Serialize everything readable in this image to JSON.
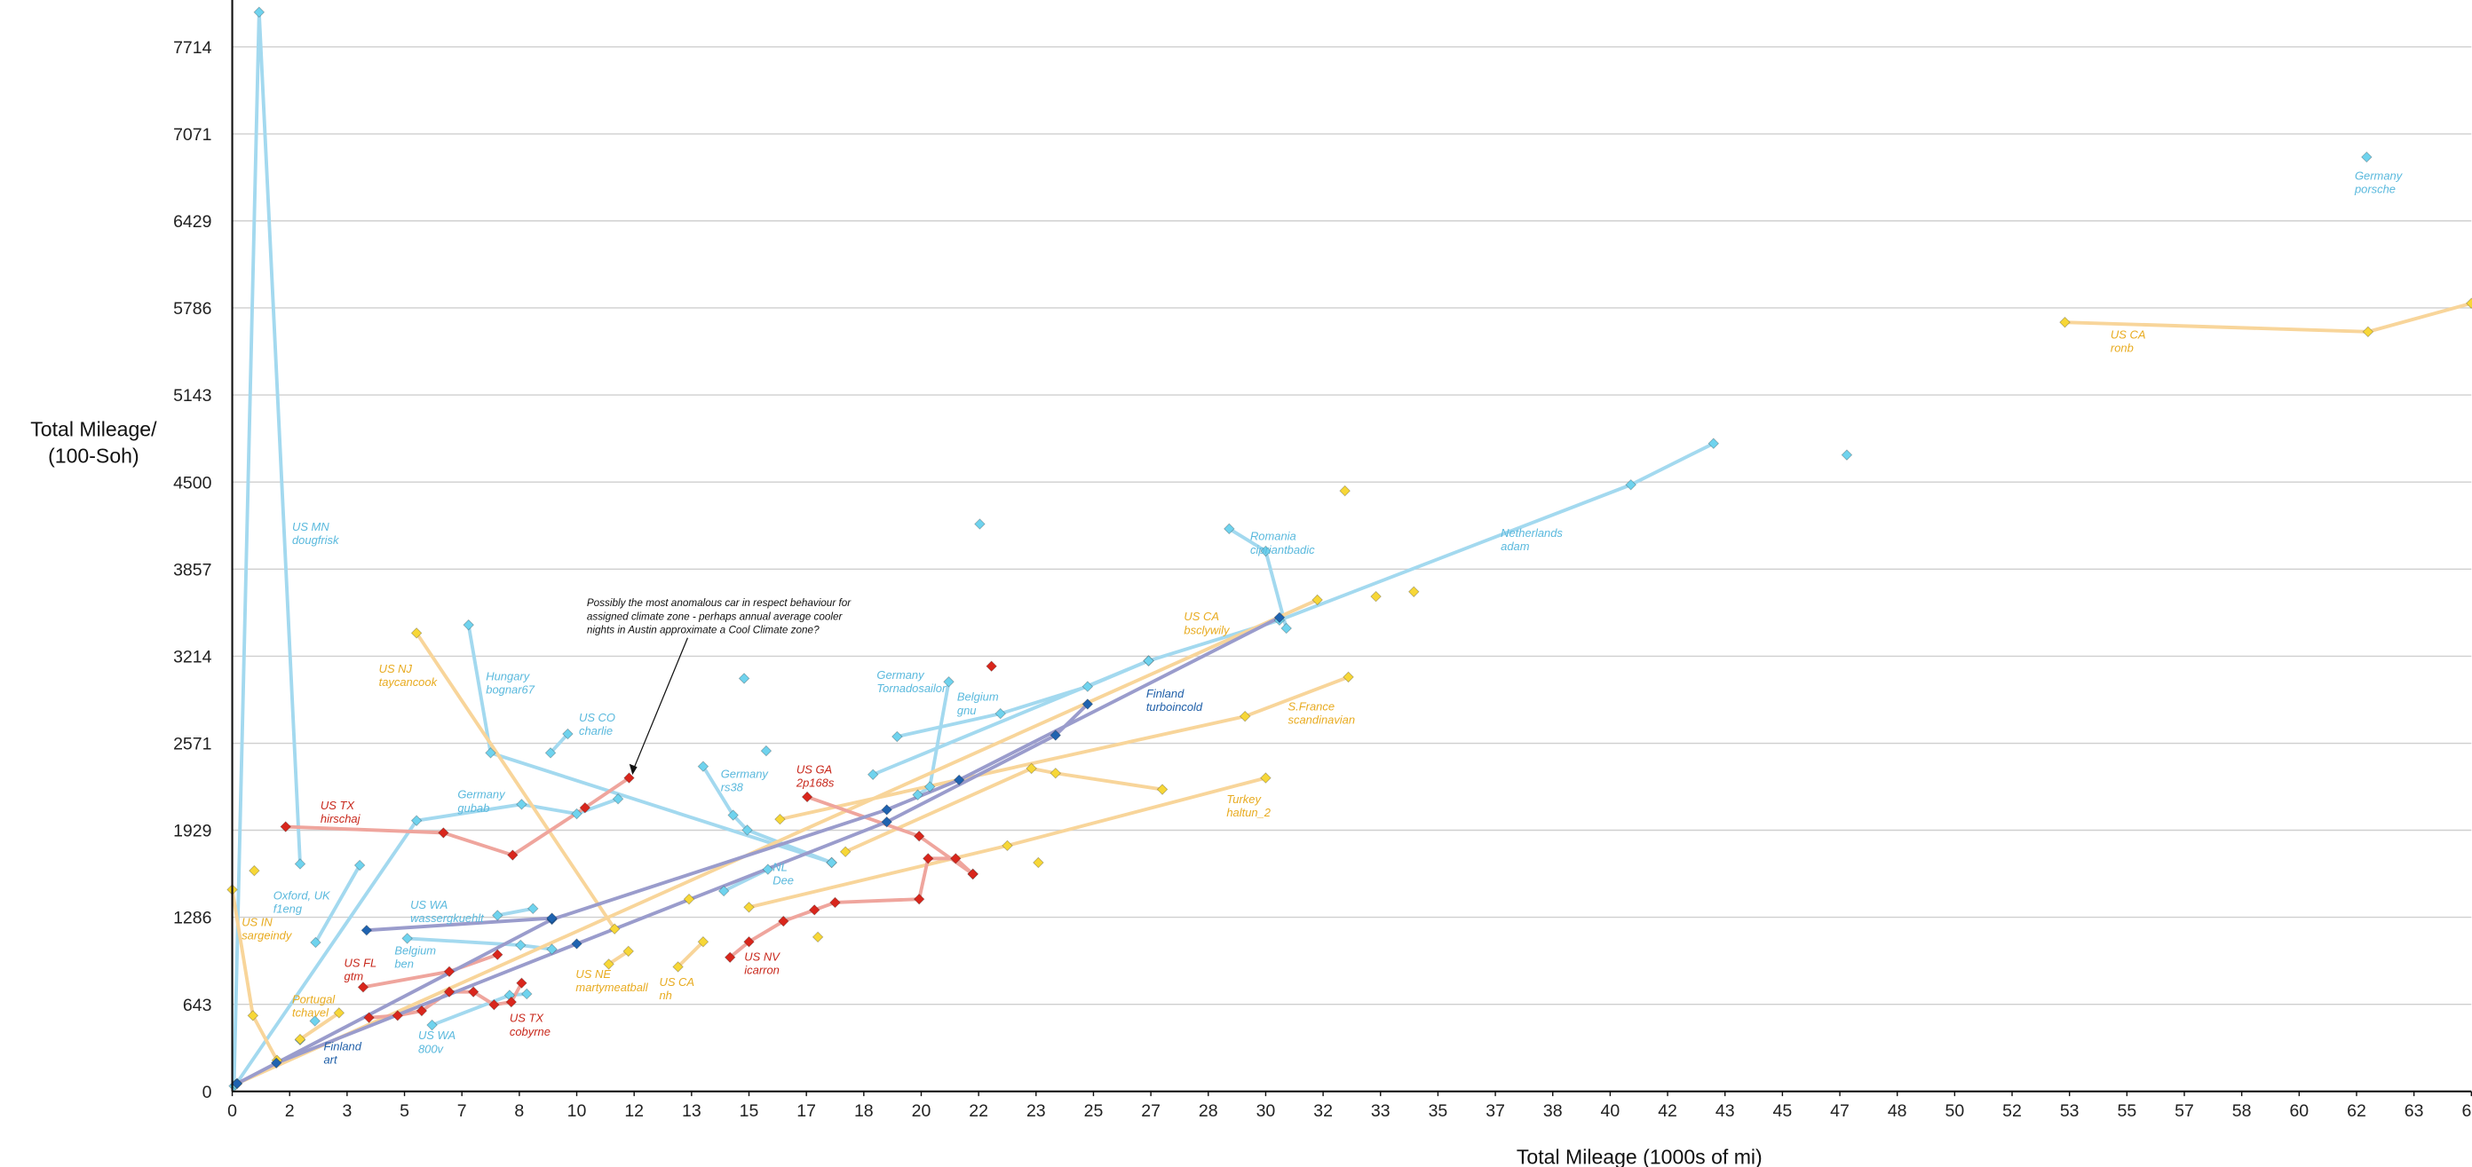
{
  "chart_data": {
    "type": "line",
    "ylabel": [
      "Total Mileage/",
      "(100-Soh)"
    ],
    "xlabel": "Total Mileage (1000s of mi)",
    "annotation": [
      "Possibly the most anomalous car in respect behaviour for",
      "assigned climate zone - perhaps annual average cooler",
      "nights in Austin approximate a Cool Climate zone?"
    ],
    "xlim": [
      0,
      65
    ],
    "ylim": [
      0,
      8060
    ],
    "grid": true,
    "xticks": [
      0,
      {
        "value": 1.6667,
        "label": "2"
      },
      {
        "value": 3.3333,
        "label": "3"
      },
      5,
      {
        "value": 6.6667,
        "label": "7"
      },
      {
        "value": 8.3333,
        "label": "8"
      },
      10,
      {
        "value": 11.6667,
        "label": "12"
      },
      {
        "value": 13.3333,
        "label": "13"
      },
      15,
      {
        "value": 16.6667,
        "label": "17"
      },
      {
        "value": 18.3333,
        "label": "18"
      },
      20,
      {
        "value": 21.6667,
        "label": "22"
      },
      {
        "value": 23.3333,
        "label": "23"
      },
      25,
      {
        "value": 26.6667,
        "label": "27"
      },
      {
        "value": 28.3333,
        "label": "28"
      },
      30,
      {
        "value": 31.6667,
        "label": "32"
      },
      {
        "value": 33.3333,
        "label": "33"
      },
      35,
      {
        "value": 36.6667,
        "label": "37"
      },
      {
        "value": 38.3333,
        "label": "38"
      },
      40,
      {
        "value": 41.6667,
        "label": "42"
      },
      {
        "value": 43.3333,
        "label": "43"
      },
      45,
      {
        "value": 46.6667,
        "label": "47"
      },
      {
        "value": 48.3333,
        "label": "48"
      },
      50,
      {
        "value": 51.6667,
        "label": "52"
      },
      {
        "value": 53.3333,
        "label": "53"
      },
      55,
      {
        "value": 56.6667,
        "label": "57"
      },
      {
        "value": 58.3333,
        "label": "58"
      },
      60,
      {
        "value": 61.6667,
        "label": "62"
      },
      {
        "value": 63.3333,
        "label": "63"
      },
      65
    ],
    "yticks": [
      0,
      643,
      1286,
      1929,
      2571,
      3214,
      3857,
      4500,
      5143,
      5786,
      6429,
      7071,
      7714
    ],
    "series": [
      {
        "region": "US MN",
        "user": "dougfrisk",
        "color": "#6fd3ee",
        "line_color": "#a3d9ef",
        "label_color": "#5ab9dd",
        "lines": true,
        "x": [
          0.05,
          0.78,
          1.97
        ],
        "values": [
          40,
          7970,
          1680
        ]
      },
      {
        "region": "Oxford, UK",
        "user": "f1eng",
        "color": "#6fd3ee",
        "line_color": "#a3d9ef",
        "label_color": "#5ab9dd",
        "lines": true,
        "x": [
          2.42,
          3.7
        ],
        "values": [
          1100,
          1670
        ]
      },
      {
        "region": "Germany",
        "user": "gubab",
        "color": "#6fd3ee",
        "line_color": "#a3d9ef",
        "label_color": "#5ab9dd",
        "lines": true,
        "x": [
          0.1,
          5.35,
          8.4,
          10.0,
          11.2
        ],
        "values": [
          50,
          2000,
          2120,
          2050,
          2160
        ]
      },
      {
        "region": "Hungary",
        "user": "bognar67",
        "color": "#6fd3ee",
        "line_color": "#a3d9ef",
        "label_color": "#5ab9dd",
        "lines": true,
        "x": [
          6.86,
          7.5,
          17.4
        ],
        "values": [
          3445,
          2500,
          1690
        ]
      },
      {
        "region": "US CO",
        "user": "charlie",
        "color": "#6fd3ee",
        "line_color": "#a3d9ef",
        "label_color": "#5ab9dd",
        "lines": true,
        "x": [
          9.24,
          9.74
        ],
        "values": [
          2500,
          2640
        ]
      },
      {
        "region": "Germany",
        "user": "rs38",
        "color": "#6fd3ee",
        "line_color": "#a3d9ef",
        "label_color": "#5ab9dd",
        "lines": true,
        "x": [
          13.67,
          14.54,
          14.95,
          17.4
        ],
        "values": [
          2400,
          2040,
          1930,
          1690
        ]
      },
      {
        "region": "NL",
        "user": "Dee",
        "color": "#6fd3ee",
        "line_color": "#a3d9ef",
        "label_color": "#5ab9dd",
        "lines": true,
        "x": [
          14.27,
          15.55
        ],
        "values": [
          1480,
          1640
        ]
      },
      {
        "region": "Germany",
        "user": "Tornadosailor",
        "color": "#6fd3ee",
        "line_color": "#a3d9ef",
        "label_color": "#5ab9dd",
        "lines": true,
        "x": [
          20.8,
          20.25,
          19.9
        ],
        "values": [
          3025,
          2250,
          2190
        ]
      },
      {
        "region": "Belgium",
        "user": "gnu",
        "color": "#6fd3ee",
        "line_color": "#a3d9ef",
        "label_color": "#5ab9dd",
        "lines": true,
        "x": [
          19.3,
          22.3,
          24.83,
          26.6
        ],
        "values": [
          2620,
          2790,
          2990,
          3180
        ]
      },
      {
        "region": "Romania",
        "user": "cipriantbadic",
        "color": "#6fd3ee",
        "line_color": "#a3d9ef",
        "label_color": "#5ab9dd",
        "lines": true,
        "x": [
          28.94,
          30.0,
          30.6
        ],
        "values": [
          4155,
          3990,
          3420
        ]
      },
      {
        "region": "Netherlands",
        "user": "adam",
        "color": "#6fd3ee",
        "line_color": "#a3d9ef",
        "label_color": "#5ab9dd",
        "lines": true,
        "x": [
          18.6,
          26.6,
          30.4,
          40.6,
          43.0
        ],
        "values": [
          2340,
          3180,
          3480,
          4480,
          4785
        ]
      },
      {
        "region": "Germany",
        "user": "porsche",
        "color": "#6fd3ee",
        "line_color": "#a3d9ef",
        "label_color": "#5ab9dd",
        "lines": true,
        "x": [
          61.96
        ],
        "values": [
          6900
        ]
      },
      {
        "region": "Belgium",
        "user": "ben",
        "color": "#6fd3ee",
        "line_color": "#a3d9ef",
        "label_color": "#5ab9dd",
        "lines": true,
        "x": [
          5.08,
          8.37,
          9.28
        ],
        "values": [
          1130,
          1080,
          1050
        ]
      },
      {
        "region": "US WA",
        "user": "wassergkuehlt",
        "color": "#6fd3ee",
        "line_color": "#a3d9ef",
        "label_color": "#5ab9dd",
        "lines": true,
        "x": [
          7.7,
          8.73
        ],
        "values": [
          1300,
          1350
        ]
      },
      {
        "region": "US WA",
        "user": "800v",
        "color": "#6fd3ee",
        "line_color": "#a3d9ef",
        "label_color": "#5ab9dd",
        "lines": true,
        "x": [
          5.8,
          8.05,
          8.55
        ],
        "values": [
          490,
          710,
          720
        ]
      },
      {
        "color": "#6fd3ee",
        "line_color": "#a3d9ef",
        "lines": false,
        "x": [
          46.87,
          21.7,
          14.86,
          15.5,
          1.97,
          2.4
        ],
        "values": [
          4700,
          4190,
          3050,
          2515,
          380,
          520
        ]
      },
      {
        "region": "US IN",
        "user": "sargeindy",
        "color": "#f7d737",
        "line_color": "#f8d59a",
        "label_color": "#e8ab20",
        "lines": true,
        "x": [
          0.0,
          0.6,
          1.3
        ],
        "values": [
          1490,
          560,
          230
        ]
      },
      {
        "region": "Portugal",
        "user": "tchavel",
        "color": "#f7d737",
        "line_color": "#f8d59a",
        "label_color": "#e8ab20",
        "lines": true,
        "x": [
          1.97,
          3.1
        ],
        "values": [
          385,
          580
        ]
      },
      {
        "region": "US NJ",
        "user": "taycancook",
        "color": "#f7d737",
        "line_color": "#f8d59a",
        "label_color": "#e8ab20",
        "lines": true,
        "x": [
          5.35,
          11.1
        ],
        "values": [
          3385,
          1200
        ]
      },
      {
        "region": "US NE",
        "user": "martymeatball",
        "color": "#f7d737",
        "line_color": "#f8d59a",
        "label_color": "#e8ab20",
        "lines": true,
        "x": [
          10.93,
          11.5
        ],
        "values": [
          940,
          1035
        ]
      },
      {
        "region": "US CA",
        "user": "nh",
        "color": "#f7d737",
        "line_color": "#f8d59a",
        "label_color": "#e8ab20",
        "lines": true,
        "x": [
          12.94,
          13.67
        ],
        "values": [
          920,
          1105
        ]
      },
      {
        "region": "US CA",
        "user": "bsclywily",
        "color": "#f7d737",
        "line_color": "#f8d59a",
        "label_color": "#e8ab20",
        "lines": true,
        "x": [
          0.14,
          31.5
        ],
        "values": [
          58,
          3630
        ]
      },
      {
        "region": "S.France",
        "user": "scandinavian",
        "color": "#f7d737",
        "line_color": "#f8d59a",
        "label_color": "#e8ab20",
        "lines": true,
        "x": [
          15.9,
          29.4,
          32.4
        ],
        "values": [
          2010,
          2770,
          3060
        ]
      },
      {
        "region": "Turkey",
        "user": "haltun_2",
        "color": "#f7d737",
        "line_color": "#f8d59a",
        "label_color": "#e8ab20",
        "lines": true,
        "x": [
          15.0,
          22.5,
          30.0
        ],
        "values": [
          1360,
          1815,
          2315
        ]
      },
      {
        "region": "US CA",
        "user": "ronb",
        "color": "#f7d737",
        "line_color": "#f8d59a",
        "label_color": "#e8ab20",
        "lines": true,
        "x": [
          53.2,
          62.0,
          65.0
        ],
        "values": [
          5680,
          5610,
          5820
        ]
      },
      {
        "color": "#f7d737",
        "line_color": "#f8d59a",
        "lines": true,
        "x": [
          17.8,
          23.2,
          23.9,
          27.0
        ],
        "values": [
          1770,
          2385,
          2350,
          2230
        ]
      },
      {
        "color": "#f7d737",
        "line_color": "#f8d59a",
        "lines": false,
        "x": [
          32.3,
          33.2,
          34.3,
          23.4,
          17.0,
          13.26,
          0.64
        ],
        "values": [
          4435,
          3655,
          3690,
          1690,
          1140,
          1420,
          1630
        ]
      },
      {
        "region": "US TX",
        "user": "hirschaj",
        "color": "#d9261c",
        "line_color": "#efa59d",
        "label_color": "#c8281c",
        "lines": true,
        "x": [
          1.55,
          6.13,
          8.14,
          10.24,
          11.52
        ],
        "values": [
          1955,
          1910,
          1745,
          2095,
          2315
        ]
      },
      {
        "region": "US GA",
        "user": "2p168s",
        "color": "#d9261c",
        "line_color": "#efa59d",
        "label_color": "#c8281c",
        "lines": true,
        "x": [
          16.69,
          19.94,
          21.5
        ],
        "values": [
          2175,
          1885,
          1605
        ]
      },
      {
        "region": "US NV",
        "user": "icarron",
        "color": "#d9261c",
        "line_color": "#efa59d",
        "label_color": "#c8281c",
        "lines": true,
        "x": [
          14.45,
          15.0,
          16.0,
          16.9,
          17.5,
          19.94,
          20.2,
          21.0,
          21.5
        ],
        "values": [
          990,
          1105,
          1257,
          1340,
          1395,
          1420,
          1720,
          1720,
          1605
        ]
      },
      {
        "region": "US FL",
        "user": "gtm",
        "color": "#d9261c",
        "line_color": "#efa59d",
        "label_color": "#c8281c",
        "lines": true,
        "x": [
          3.8,
          6.3,
          7.7
        ],
        "values": [
          770,
          885,
          1010
        ]
      },
      {
        "region": "US TX",
        "user": "cobyrne",
        "color": "#d9261c",
        "line_color": "#efa59d",
        "label_color": "#c8281c",
        "lines": true,
        "x": [
          3.97,
          4.8,
          5.5,
          6.3,
          7.0,
          7.6,
          8.1,
          8.4
        ],
        "values": [
          545,
          560,
          595,
          735,
          735,
          640,
          660,
          800
        ]
      },
      {
        "color": "#d9261c",
        "line_color": "#efa59d",
        "lines": false,
        "x": [
          22.04
        ],
        "values": [
          3140
        ]
      },
      {
        "region": "Finland",
        "user": "turboincold",
        "color": "#1f63b0",
        "line_color": "#9a9ccc",
        "label_color": "#1f5fa8",
        "lines": true,
        "x": [
          0.14,
          9.28,
          19.0,
          21.1,
          30.4
        ],
        "values": [
          58,
          1270,
          2080,
          2300,
          3500
        ]
      },
      {
        "region": "Finland",
        "user": "art",
        "color": "#1f63b0",
        "line_color": "#9a9ccc",
        "label_color": "#1f5fa8",
        "lines": true,
        "x": [
          1.28,
          10.0,
          19.0,
          23.9,
          24.83
        ],
        "values": [
          210,
          1090,
          1990,
          2630,
          2860
        ]
      },
      {
        "color": "#1f63b0",
        "line_color": "#9a9ccc",
        "lines": true,
        "x": [
          3.9,
          9.28
        ],
        "values": [
          1190,
          1280
        ]
      }
    ]
  }
}
